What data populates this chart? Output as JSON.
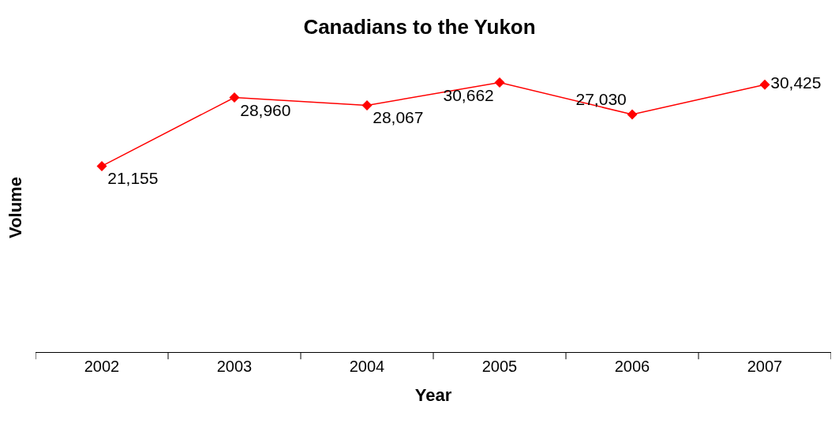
{
  "chart_data": {
    "type": "line",
    "title": "Canadians to the Yukon",
    "xlabel": "Year",
    "ylabel": "Volume",
    "categories": [
      "2002",
      "2003",
      "2004",
      "2005",
      "2006",
      "2007"
    ],
    "series": [
      {
        "color": "#ff0000",
        "values": [
          21155,
          28960,
          28067,
          30662,
          27030,
          30425
        ],
        "value_labels": [
          "21,155",
          "28,960",
          "28,067",
          "30,662",
          "27,030",
          "30,425"
        ]
      }
    ],
    "grid": false,
    "marker": "diamond",
    "line_style": "solid"
  }
}
